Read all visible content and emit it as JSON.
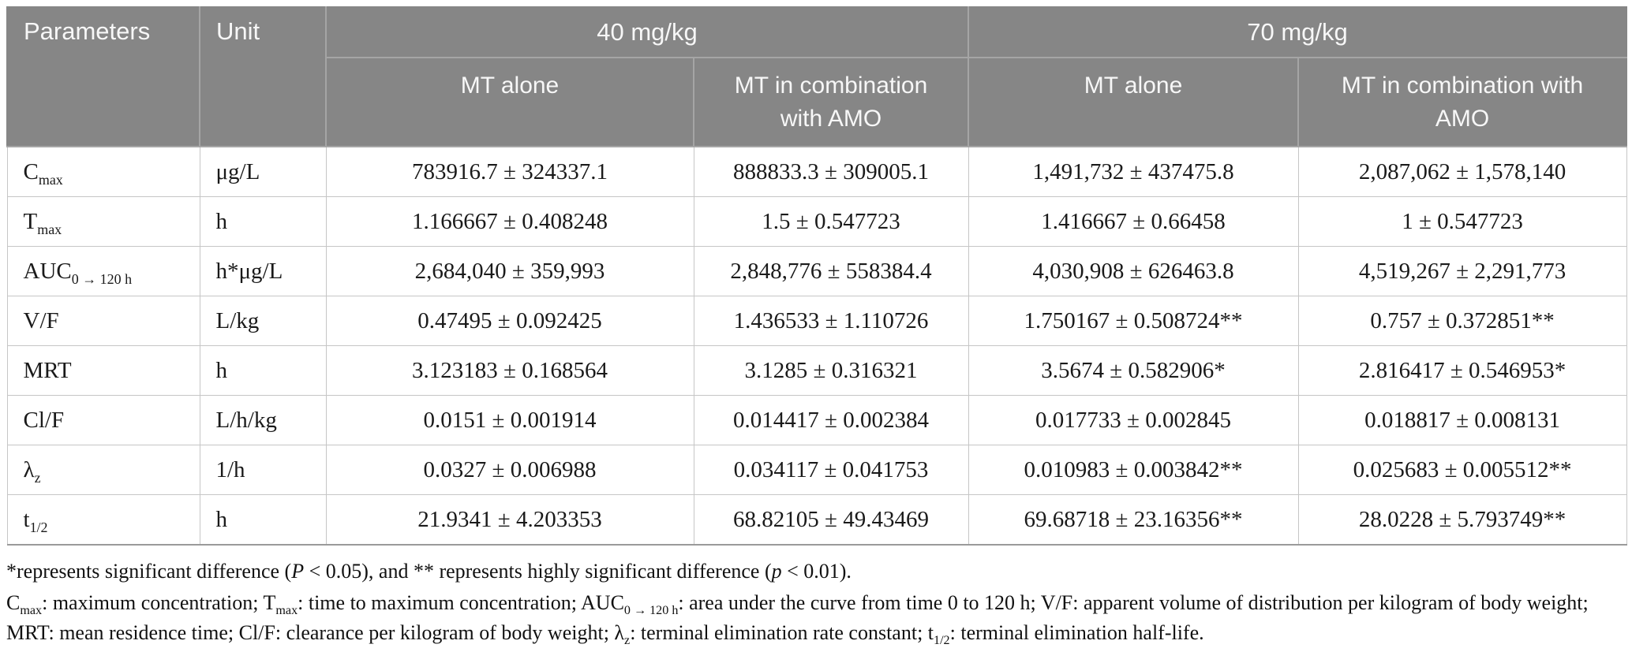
{
  "table": {
    "header": {
      "parameters_label": "Parameters",
      "unit_label": "Unit",
      "groups": [
        {
          "label": "40 mg/kg"
        },
        {
          "label": "70 mg/kg"
        }
      ],
      "subcolumns": [
        "MT alone",
        "MT in combination with AMO",
        "MT alone",
        "MT in combination with AMO"
      ]
    },
    "rows": [
      {
        "param": [
          {
            "t": "C"
          },
          {
            "t": "max",
            "style": "sub"
          }
        ],
        "unit": "μg/L",
        "values": [
          "783916.7 ± 324337.1",
          "888833.3 ± 309005.1",
          "1,491,732 ± 437475.8",
          "2,087,062 ± 1,578,140"
        ]
      },
      {
        "param": [
          {
            "t": "T"
          },
          {
            "t": "max",
            "style": "sub"
          }
        ],
        "unit": "h",
        "values": [
          "1.166667 ± 0.408248",
          "1.5 ± 0.547723",
          "1.416667 ± 0.66458",
          "1 ± 0.547723"
        ]
      },
      {
        "param": [
          {
            "t": "AUC"
          },
          {
            "t": "0 → 120 h",
            "style": "sub"
          }
        ],
        "unit": "h*μg/L",
        "values": [
          "2,684,040 ± 359,993",
          "2,848,776 ± 558384.4",
          "4,030,908 ± 626463.8",
          "4,519,267 ± 2,291,773"
        ]
      },
      {
        "param": [
          {
            "t": "V/F"
          }
        ],
        "unit": "L/kg",
        "values": [
          "0.47495 ± 0.092425",
          "1.436533 ± 1.110726",
          "1.750167 ± 0.508724**",
          "0.757 ± 0.372851**"
        ]
      },
      {
        "param": [
          {
            "t": "MRT"
          }
        ],
        "unit": "h",
        "values": [
          "3.123183 ± 0.168564",
          "3.1285 ± 0.316321",
          "3.5674 ± 0.582906*",
          "2.816417 ± 0.546953*"
        ]
      },
      {
        "param": [
          {
            "t": "Cl/F"
          }
        ],
        "unit": "L/h/kg",
        "values": [
          "0.0151 ± 0.001914",
          "0.014417 ± 0.002384",
          "0.017733 ± 0.002845",
          "0.018817 ± 0.008131"
        ]
      },
      {
        "param": [
          {
            "t": "λ"
          },
          {
            "t": "z",
            "style": "sub"
          }
        ],
        "unit": "1/h",
        "values": [
          "0.0327 ± 0.006988",
          "0.034117 ± 0.041753",
          "0.010983 ± 0.003842**",
          "0.025683 ± 0.005512**"
        ]
      },
      {
        "param": [
          {
            "t": "t"
          },
          {
            "t": "1/2",
            "style": "sub"
          }
        ],
        "unit": "h",
        "values": [
          "21.9341 ± 4.203353",
          "68.82105 ± 49.43469",
          "69.68718 ± 23.16356**",
          "28.0228 ± 5.793749**"
        ]
      }
    ]
  },
  "footnotes": {
    "significance": [
      {
        "t": "*represents significant difference ("
      },
      {
        "t": "P",
        "style": "italic"
      },
      {
        "t": " < 0.05), and ** represents highly significant difference ("
      },
      {
        "t": "p",
        "style": "italic"
      },
      {
        "t": " < 0.01)."
      }
    ],
    "abbreviations": [
      {
        "t": "C"
      },
      {
        "t": "max",
        "style": "sub"
      },
      {
        "t": ": maximum concentration; T"
      },
      {
        "t": "max",
        "style": "sub"
      },
      {
        "t": ": time to maximum concentration; AUC"
      },
      {
        "t": "0 → 120 h",
        "style": "sub"
      },
      {
        "t": ": area under the curve from time 0 to 120 h; V/F: apparent volume of distribution per kilogram of body weight; MRT: mean residence time; Cl/F: clearance per kilogram of body weight; λ"
      },
      {
        "t": "z",
        "style": "sub"
      },
      {
        "t": ": terminal elimination rate constant; t"
      },
      {
        "t": "1/2",
        "style": "sub"
      },
      {
        "t": ": terminal elimination half-life."
      }
    ]
  }
}
